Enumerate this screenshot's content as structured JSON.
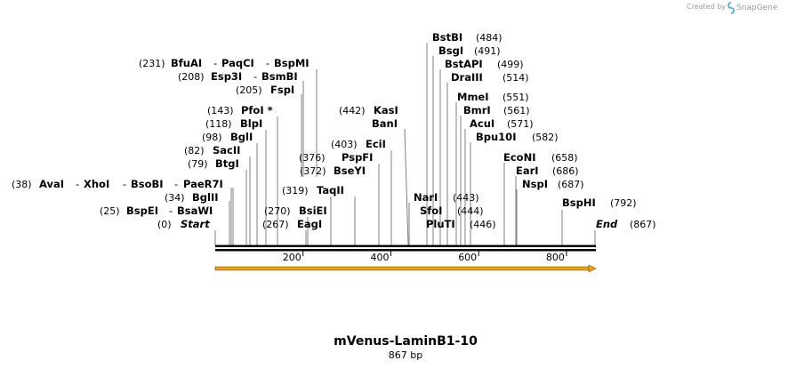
{
  "credit": {
    "prefix": "Created by",
    "brand": "SnapGene"
  },
  "map": {
    "name": "mVenus-LaminB1-10",
    "length_label": "867 bp",
    "length": 867,
    "ticks": [
      {
        "value": 200,
        "label": "200"
      },
      {
        "value": 400,
        "label": "400"
      },
      {
        "value": 600,
        "label": "600"
      },
      {
        "value": 800,
        "label": "800"
      }
    ],
    "feature": {
      "start": 0,
      "end": 867,
      "color": "#e8a21c"
    }
  },
  "sites": [
    {
      "pos": 0,
      "pos_label": "(0)",
      "names": [
        "Start"
      ],
      "kind": "terminus"
    },
    {
      "pos": 25,
      "pos_label": "(25)",
      "names": [
        "BspEI",
        "BsaWI"
      ]
    },
    {
      "pos": 34,
      "pos_label": "(34)",
      "names": [
        "BglII"
      ]
    },
    {
      "pos": 38,
      "pos_label": "(38)",
      "names": [
        "AvaI",
        "XhoI",
        "BsoBI",
        "PaeR7I"
      ]
    },
    {
      "pos": 79,
      "pos_label": "(79)",
      "names": [
        "BtgI"
      ]
    },
    {
      "pos": 82,
      "pos_label": "(82)",
      "names": [
        "SacII"
      ]
    },
    {
      "pos": 98,
      "pos_label": "(98)",
      "names": [
        "BglI"
      ]
    },
    {
      "pos": 118,
      "pos_label": "(118)",
      "names": [
        "BlpI"
      ]
    },
    {
      "pos": 143,
      "pos_label": "(143)",
      "names": [
        "PfoI *"
      ]
    },
    {
      "pos": 205,
      "pos_label": "(205)",
      "names": [
        "FspI"
      ]
    },
    {
      "pos": 208,
      "pos_label": "(208)",
      "names": [
        "Esp3I",
        "BsmBI"
      ]
    },
    {
      "pos": 231,
      "pos_label": "(231)",
      "names": [
        "BfuAI",
        "PaqCI",
        "BspMI"
      ]
    },
    {
      "pos": 267,
      "pos_label": "(267)",
      "names": [
        "EagI"
      ]
    },
    {
      "pos": 270,
      "pos_label": "(270)",
      "names": [
        "BsiEI"
      ]
    },
    {
      "pos": 319,
      "pos_label": "(319)",
      "names": [
        "TaqII"
      ]
    },
    {
      "pos": 372,
      "pos_label": "(372)",
      "names": [
        "BseYI"
      ]
    },
    {
      "pos": 376,
      "pos_label": "(376)",
      "names": [
        "PspFI"
      ]
    },
    {
      "pos": 403,
      "pos_label": "(403)",
      "names": [
        "EciI"
      ]
    },
    {
      "pos": 442,
      "pos_label": "(442)",
      "names": [
        "KasI"
      ]
    },
    {
      "names": [
        "BanI"
      ]
    },
    {
      "names": [
        "NarI"
      ]
    },
    {
      "names": [
        "SfoI"
      ]
    },
    {
      "names": [
        "PluTI"
      ]
    },
    {
      "pos": 443,
      "pos_label": "(443)"
    },
    {
      "pos": 444,
      "pos_label": "(444)"
    },
    {
      "pos": 446,
      "pos_label": "(446)"
    },
    {
      "pos": 484,
      "pos_label": "(484)",
      "names": [
        "BstBI"
      ]
    },
    {
      "pos": 491,
      "pos_label": "(491)",
      "names": [
        "BsgI"
      ]
    },
    {
      "pos": 499,
      "pos_label": "(499)",
      "names": [
        "BstAPI"
      ]
    },
    {
      "pos": 514,
      "pos_label": "(514)",
      "names": [
        "DraIII"
      ]
    },
    {
      "pos": 551,
      "pos_label": "(551)",
      "names": [
        "MmeI"
      ]
    },
    {
      "pos": 561,
      "pos_label": "(561)",
      "names": [
        "BmrI"
      ]
    },
    {
      "pos": 571,
      "pos_label": "(571)",
      "names": [
        "AcuI"
      ]
    },
    {
      "pos": 582,
      "pos_label": "(582)",
      "names": [
        "Bpu10I"
      ]
    },
    {
      "pos": 658,
      "pos_label": "(658)",
      "names": [
        "EcoNI"
      ]
    },
    {
      "pos": 686,
      "pos_label": "(686)",
      "names": [
        "EarI"
      ]
    },
    {
      "pos": 687,
      "pos_label": "(687)",
      "names": [
        "NspI"
      ]
    },
    {
      "pos": 792,
      "pos_label": "(792)",
      "names": [
        "BspHI"
      ]
    },
    {
      "pos": 867,
      "pos_label": "(867)",
      "names": [
        "End"
      ],
      "kind": "terminus"
    }
  ]
}
